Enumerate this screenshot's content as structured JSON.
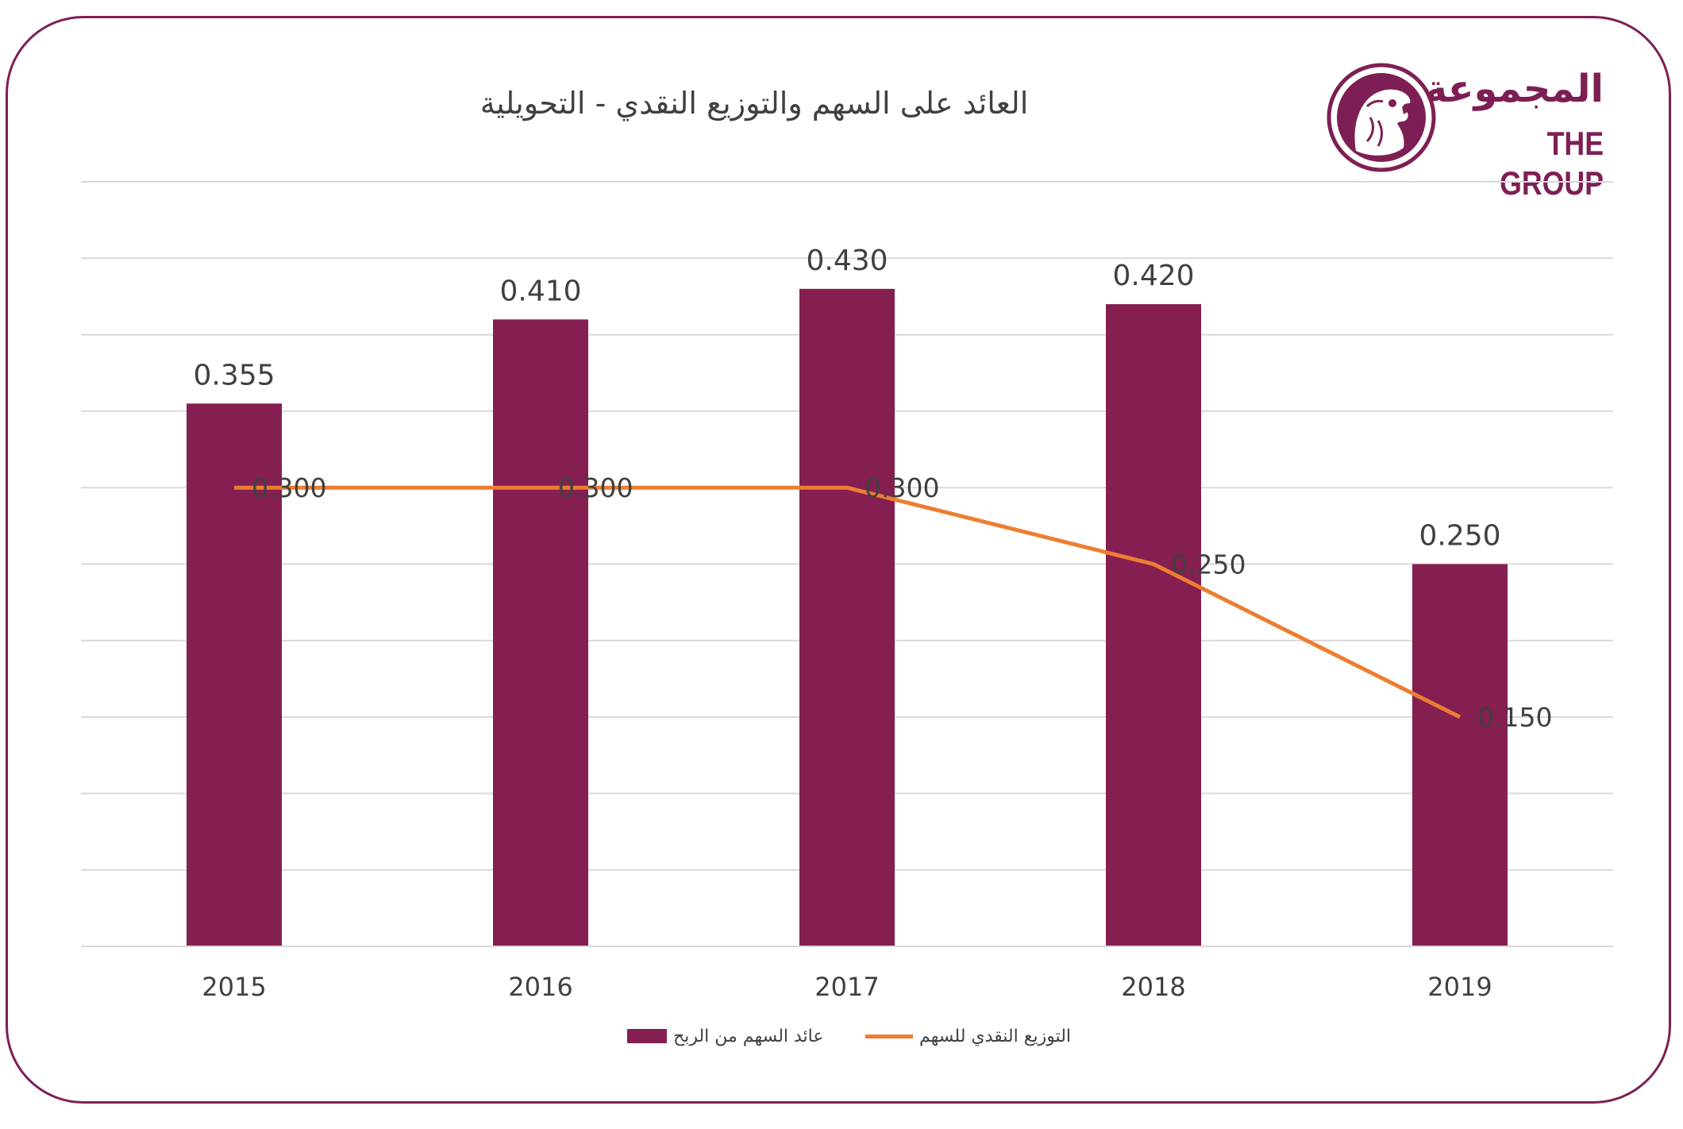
{
  "title": "العائد على السهم والتوزيع النقدي - التحويلية",
  "logo": {
    "arabic": "المجموعة",
    "english": "THE GROUP",
    "emblem": "falcon-emblem-icon"
  },
  "colors": {
    "frame": "#7d1f54",
    "bar": "#851f51",
    "line": "#ed7d31",
    "grid": "#d9d9d9",
    "text": "#404040"
  },
  "chart_data": {
    "type": "bar",
    "categories": [
      "2015",
      "2016",
      "2017",
      "2018",
      "2019"
    ],
    "series": [
      {
        "name": "عائد السهم من الربح",
        "type": "bar",
        "values": [
          0.355,
          0.41,
          0.43,
          0.42,
          0.25
        ],
        "labels": [
          "0.355",
          "0.410",
          "0.430",
          "0.420",
          "0.250"
        ]
      },
      {
        "name": "التوزيع النقدي للسهم",
        "type": "line",
        "values": [
          0.3,
          0.3,
          0.3,
          0.25,
          0.15
        ],
        "labels": [
          "0.300",
          "0.300",
          "0.300",
          "0.250",
          "0.150"
        ]
      }
    ],
    "ylim": [
      0,
      0.5
    ],
    "grid": true,
    "legend": "bottom"
  }
}
